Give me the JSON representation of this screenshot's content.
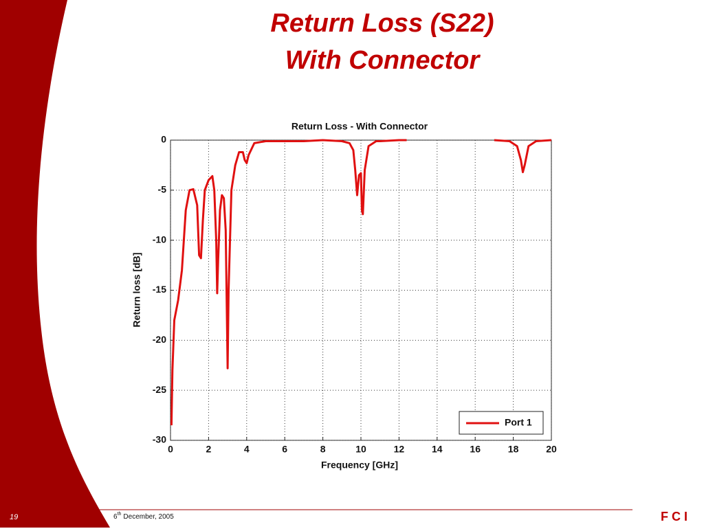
{
  "slide": {
    "title_lines": [
      "Return Loss (S22)",
      "With Connector"
    ],
    "page_number": "19",
    "date": {
      "day": "6",
      "suffix": "th",
      "rest": "December, 2005"
    },
    "logo": "F C I"
  },
  "chart_data": {
    "type": "line",
    "title": "Return Loss - With Connector",
    "x_label": "Frequency [GHz]",
    "y_label": "Return loss [dB]",
    "x": [
      0.05,
      0.1,
      0.2,
      0.4,
      0.6,
      0.8,
      1.0,
      1.2,
      1.4,
      1.5,
      1.6,
      1.7,
      1.8,
      2.0,
      2.2,
      2.3,
      2.4,
      2.45,
      2.5,
      2.6,
      2.7,
      2.8,
      2.9,
      3.0,
      3.05,
      3.2,
      3.4,
      3.6,
      3.8,
      3.9,
      4.0,
      4.1,
      4.4,
      5,
      6,
      7,
      8,
      9,
      9.4,
      9.6,
      9.7,
      9.8,
      9.9,
      10.0,
      10.05,
      10.1,
      10.2,
      10.4,
      10.8,
      11,
      12,
      12.4,
      12.6,
      17,
      17.8,
      18.2,
      18.4,
      18.5,
      18.6,
      18.8,
      19.2,
      20
    ],
    "series": [
      {
        "name": "Port 1",
        "color": "#e01010",
        "values": [
          -28.5,
          -23,
          -18,
          -16,
          -13,
          -7,
          -5,
          -4.9,
          -6.5,
          -11.5,
          -11.8,
          -8,
          -5,
          -4,
          -3.6,
          -5,
          -10,
          -15.3,
          -12,
          -7,
          -5.5,
          -5.8,
          -9,
          -22.8,
          -15,
          -5,
          -2.5,
          -1.2,
          -1.2,
          -2,
          -2.3,
          -1.5,
          -0.3,
          -0.1,
          -0.1,
          -0.1,
          0,
          -0.1,
          -0.3,
          -1,
          -3,
          -5.5,
          -3.5,
          -3.3,
          -7,
          -7.4,
          -3,
          -0.6,
          -0.1,
          -0.1,
          0,
          0,
          null,
          0,
          -0.1,
          -0.6,
          -2,
          -3.2,
          -2.5,
          -0.6,
          -0.1,
          0
        ]
      }
    ],
    "xlim": [
      0,
      20
    ],
    "xticks": [
      0,
      2,
      4,
      6,
      8,
      10,
      12,
      14,
      16,
      18,
      20
    ],
    "ylim": [
      -30,
      0
    ],
    "yticks": [
      -30,
      -25,
      -20,
      -15,
      -10,
      -5,
      0
    ],
    "grid": true,
    "legend": "lower right"
  }
}
